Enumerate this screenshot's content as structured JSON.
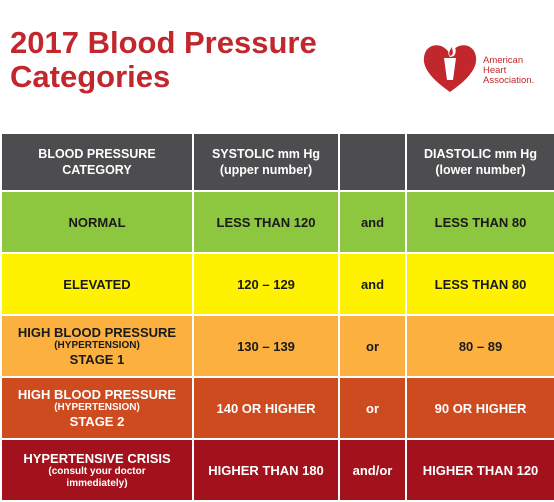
{
  "title": {
    "line1": "2017 Blood Pressure",
    "line2": "Categories"
  },
  "logo": {
    "line1": "American",
    "line2": "Heart",
    "line3": "Association.",
    "color": "#c1272d"
  },
  "header": {
    "category_line1": "BLOOD PRESSURE",
    "category_line2": "CATEGORY",
    "systolic_line1": "SYSTOLIC mm Hg",
    "systolic_line2": "(upper number)",
    "connector": "",
    "diastolic_line1": "DIASTOLIC mm Hg",
    "diastolic_line2": "(lower number)"
  },
  "rows": [
    {
      "cat1": "NORMAL",
      "systolic": "LESS THAN 120",
      "conj": "and",
      "diastolic": "LESS THAN 80",
      "color": "#8dc63f"
    },
    {
      "cat1": "ELEVATED",
      "systolic": "120 – 129",
      "conj": "and",
      "diastolic": "LESS THAN 80",
      "color": "#fff200"
    },
    {
      "cat1": "HIGH BLOOD PRESSURE",
      "cat2": "(HYPERTENSION)",
      "cat3": "STAGE 1",
      "systolic": "130 – 139",
      "conj": "or",
      "diastolic": "80 – 89",
      "color": "#fbb040"
    },
    {
      "cat1": "HIGH BLOOD PRESSURE",
      "cat2": "(HYPERTENSION)",
      "cat3": "STAGE 2",
      "systolic": "140 OR HIGHER",
      "conj": "or",
      "diastolic": "90 OR HIGHER",
      "color": "#ce4a1f"
    },
    {
      "cat1": "HYPERTENSIVE CRISIS",
      "cat2": "(consult your doctor",
      "cat3": "immediately)",
      "systolic": "HIGHER THAN 180",
      "conj": "and/or",
      "diastolic": "HIGHER THAN 120",
      "color": "#a3121c"
    }
  ]
}
